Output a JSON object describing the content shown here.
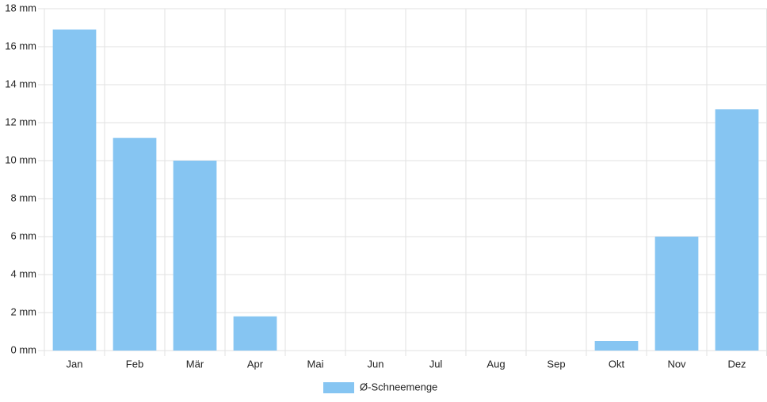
{
  "chart_data": {
    "type": "bar",
    "categories": [
      "Jan",
      "Feb",
      "Mär",
      "Apr",
      "Mai",
      "Jun",
      "Jul",
      "Aug",
      "Sep",
      "Okt",
      "Nov",
      "Dez"
    ],
    "series": [
      {
        "name": "Ø-Schneemenge",
        "color": "#86c5f2",
        "values": [
          16.9,
          11.2,
          10.0,
          1.8,
          0,
          0,
          0,
          0,
          0,
          0.5,
          6.0,
          12.7
        ]
      }
    ],
    "ylim": [
      0,
      18
    ],
    "yticks": [
      {
        "value": 0,
        "label": "0 mm"
      },
      {
        "value": 2,
        "label": "2 mm"
      },
      {
        "value": 4,
        "label": "4 mm"
      },
      {
        "value": 6,
        "label": "6 mm"
      },
      {
        "value": 8,
        "label": "8 mm"
      },
      {
        "value": 10,
        "label": "10 mm"
      },
      {
        "value": 12,
        "label": "12 mm"
      },
      {
        "value": 14,
        "label": "14 mm"
      },
      {
        "value": 16,
        "label": "16 mm"
      },
      {
        "value": 18,
        "label": "18 mm"
      }
    ],
    "grid": true,
    "legend": "bottom"
  }
}
